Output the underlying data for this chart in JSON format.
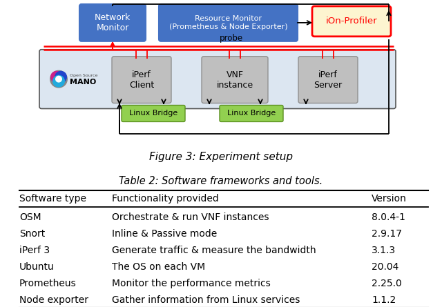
{
  "fig_caption": "Figure 3: Experiment setup",
  "table_title": "Table 2: Software frameworks and tools.",
  "table_headers": [
    "Software type",
    "Functionality provided",
    "Version"
  ],
  "table_rows": [
    [
      "OSM",
      "Orchestrate & run VNF instances",
      "8.0.4-1"
    ],
    [
      "Snort",
      "Inline & Passive mode",
      "2.9.17"
    ],
    [
      "iPerf 3",
      "Generate traffic & measure the bandwidth",
      "3.1.3"
    ],
    [
      "Ubuntu",
      "The OS on each VM",
      "20.04"
    ],
    [
      "Prometheus",
      "Monitor the performance metrics",
      "2.25.0"
    ],
    [
      "Node exporter",
      "Gather information from Linux services",
      "1.1.2"
    ]
  ],
  "bg_color": "#ffffff",
  "diagram": {
    "blue_box_color": "#4472c4",
    "blue_box_text_color": "#ffffff",
    "gray_box_color": "#bfbfbf",
    "gray_box_edge_color": "#909090",
    "gray_box_text_color": "#000000",
    "green_box_color": "#92d050",
    "green_box_edge_color": "#5a9020",
    "green_box_text_color": "#000000",
    "ion_box_color": "#fdf5d0",
    "ion_box_border_color": "#ff0000",
    "ion_box_text_color": "#ff0000",
    "light_blue_bg": "#dce6f1",
    "red_line_color": "#ff0000",
    "black_line_color": "#000000"
  }
}
